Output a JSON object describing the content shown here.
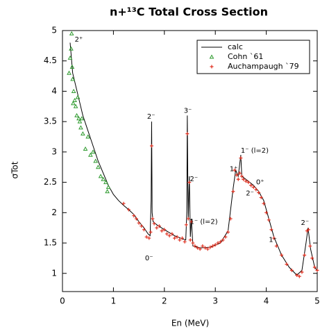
{
  "chart_data": {
    "type": "line",
    "title": "n+¹³C Total Cross Section",
    "xlabel": "En (MeV)",
    "ylabel": "σTot",
    "xlim": [
      0,
      5
    ],
    "xticks": [
      0,
      1,
      2,
      3,
      4,
      5
    ],
    "ylim": [
      0.7,
      5
    ],
    "yticks": [
      1,
      1.5,
      2,
      2.5,
      3,
      3.5,
      4,
      4.5,
      5
    ],
    "legend": "upper right",
    "series": [
      {
        "name": "calc",
        "kind": "line",
        "color": "#000000",
        "x": [
          0.15,
          0.2,
          0.3,
          0.4,
          0.5,
          0.6,
          0.7,
          0.8,
          0.9,
          1.0,
          1.1,
          1.2,
          1.3,
          1.4,
          1.5,
          1.6,
          1.68,
          1.72,
          1.74,
          1.75,
          1.76,
          1.78,
          1.85,
          2.0,
          2.2,
          2.35,
          2.42,
          2.44,
          2.45,
          2.46,
          2.47,
          2.49,
          2.51,
          2.53,
          2.56,
          2.7,
          2.9,
          3.1,
          3.25,
          3.35,
          3.4,
          3.45,
          3.5,
          3.52,
          3.6,
          3.75,
          3.85,
          3.95,
          4.05,
          4.15,
          4.3,
          4.45,
          4.6,
          4.7,
          4.78,
          4.82,
          4.87,
          4.95,
          5.0
        ],
        "values": [
          4.8,
          4.3,
          3.95,
          3.6,
          3.35,
          3.1,
          2.85,
          2.65,
          2.45,
          2.3,
          2.2,
          2.12,
          2.05,
          1.97,
          1.85,
          1.75,
          1.65,
          1.62,
          2.2,
          3.5,
          2.0,
          1.85,
          1.8,
          1.72,
          1.62,
          1.57,
          1.55,
          2.0,
          3.6,
          2.5,
          1.9,
          2.6,
          1.6,
          1.9,
          1.45,
          1.42,
          1.43,
          1.5,
          1.7,
          2.4,
          2.7,
          2.6,
          2.95,
          2.6,
          2.55,
          2.45,
          2.35,
          2.2,
          1.9,
          1.6,
          1.3,
          1.1,
          0.97,
          1.05,
          1.5,
          1.75,
          1.4,
          1.1,
          1.05
        ]
      },
      {
        "name": "Cohn `61",
        "kind": "scatter",
        "marker": "triangle",
        "color": "#2e9a2e",
        "x": [
          0.13,
          0.15,
          0.17,
          0.18,
          0.19,
          0.2,
          0.21,
          0.22,
          0.24,
          0.26,
          0.28,
          0.3,
          0.32,
          0.34,
          0.36,
          0.38,
          0.4,
          0.45,
          0.5,
          0.55,
          0.6,
          0.65,
          0.7,
          0.75,
          0.8,
          0.85,
          0.88,
          0.9
        ],
        "values": [
          4.3,
          4.55,
          4.7,
          4.95,
          4.4,
          4.2,
          3.8,
          4.0,
          3.85,
          3.75,
          3.6,
          3.9,
          3.55,
          3.5,
          3.4,
          3.55,
          3.3,
          3.05,
          3.25,
          2.95,
          3.0,
          2.85,
          2.75,
          2.6,
          2.55,
          2.5,
          2.35,
          2.42
        ]
      },
      {
        "name": "Auchampaugh `79",
        "kind": "scatter",
        "marker": "plus",
        "color": "#e03020",
        "x": [
          1.2,
          1.3,
          1.4,
          1.45,
          1.5,
          1.55,
          1.6,
          1.65,
          1.7,
          1.73,
          1.75,
          1.77,
          1.8,
          1.85,
          1.9,
          1.95,
          2.0,
          2.05,
          2.1,
          2.15,
          2.2,
          2.25,
          2.3,
          2.35,
          2.4,
          2.43,
          2.45,
          2.47,
          2.49,
          2.51,
          2.53,
          2.56,
          2.6,
          2.65,
          2.7,
          2.75,
          2.8,
          2.85,
          2.9,
          2.95,
          3.0,
          3.05,
          3.1,
          3.15,
          3.2,
          3.25,
          3.3,
          3.35,
          3.38,
          3.42,
          3.45,
          3.48,
          3.5,
          3.52,
          3.55,
          3.6,
          3.65,
          3.7,
          3.75,
          3.8,
          3.85,
          3.9,
          3.95,
          4.0,
          4.05,
          4.1,
          4.15,
          4.2,
          4.3,
          4.4,
          4.5,
          4.6,
          4.65,
          4.7,
          4.75,
          4.8,
          4.83,
          4.86,
          4.9,
          4.95,
          5.0
        ],
        "values": [
          2.15,
          2.05,
          1.95,
          1.9,
          1.83,
          1.78,
          1.72,
          1.6,
          1.58,
          1.68,
          3.1,
          1.9,
          1.82,
          1.75,
          1.78,
          1.7,
          1.72,
          1.65,
          1.62,
          1.65,
          1.58,
          1.6,
          1.55,
          1.58,
          1.52,
          1.8,
          3.3,
          1.9,
          2.5,
          1.55,
          1.85,
          1.5,
          1.45,
          1.42,
          1.4,
          1.45,
          1.42,
          1.4,
          1.43,
          1.45,
          1.47,
          1.5,
          1.52,
          1.55,
          1.6,
          1.68,
          1.9,
          2.35,
          2.7,
          2.62,
          2.55,
          2.65,
          2.9,
          2.6,
          2.55,
          2.52,
          2.5,
          2.45,
          2.42,
          2.38,
          2.33,
          2.25,
          2.15,
          2.0,
          1.88,
          1.72,
          1.58,
          1.45,
          1.3,
          1.15,
          1.05,
          0.97,
          0.95,
          1.02,
          1.3,
          1.7,
          1.72,
          1.45,
          1.25,
          1.1,
          1.05
        ]
      }
    ],
    "annotations": [
      {
        "text": "2⁺",
        "x": 0.24,
        "y": 4.85
      },
      {
        "text": "2⁻",
        "x": 1.66,
        "y": 3.58
      },
      {
        "text": "3⁻",
        "x": 2.38,
        "y": 3.68
      },
      {
        "text": "2⁻",
        "x": 2.5,
        "y": 2.55
      },
      {
        "text": "1⁻  (l=2)",
        "x": 2.5,
        "y": 1.85
      },
      {
        "text": "0⁻",
        "x": 1.62,
        "y": 1.25
      },
      {
        "text": "1⁺",
        "x": 3.28,
        "y": 2.72
      },
      {
        "text": "1⁻  (l=2)",
        "x": 3.5,
        "y": 3.02
      },
      {
        "text": "0⁺",
        "x": 3.8,
        "y": 2.5
      },
      {
        "text": "2⁻",
        "x": 3.6,
        "y": 2.32
      },
      {
        "text": "1⁻",
        "x": 4.05,
        "y": 1.55
      },
      {
        "text": "2⁻",
        "x": 4.68,
        "y": 1.83
      }
    ]
  }
}
